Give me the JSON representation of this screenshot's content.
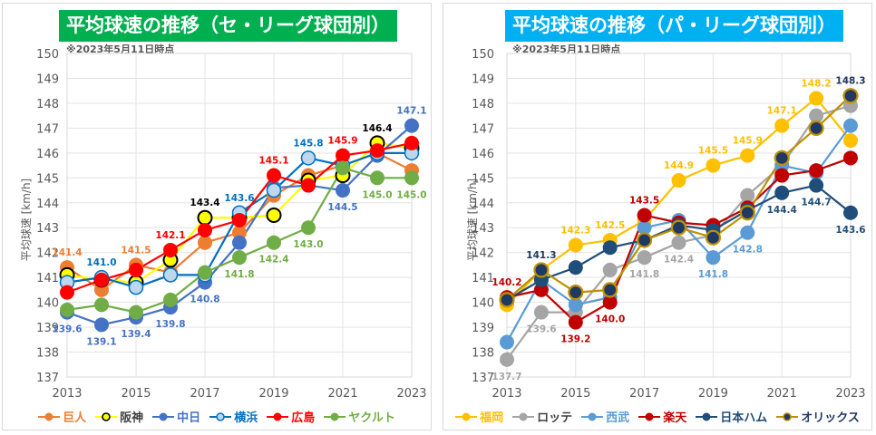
{
  "charts": [
    {
      "id": "left",
      "title": "平均球速の推移（セ・リーグ球団別）",
      "title_bg": "#00b050",
      "note": "※2023年5月11日時点",
      "ylabel": "平均球速 [km/h]"
    },
    {
      "id": "right",
      "title": "平均球速の推移（パ・リーグ球団別）",
      "title_bg": "#00b0f0",
      "note": "※2023年5月11日時点",
      "ylabel": "平均球速 [km/h]"
    }
  ],
  "chart_data": [
    {
      "type": "line",
      "title": "平均球速の推移（セ・リーグ球団別）",
      "subtitle": "※2023年5月11日時点",
      "xlabel": "",
      "ylabel": "平均球速 [km/h]",
      "x": [
        2013,
        2014,
        2015,
        2016,
        2017,
        2018,
        2019,
        2020,
        2021,
        2022,
        2023
      ],
      "xticks": [
        "2013",
        "2015",
        "2017",
        "2019",
        "2021",
        "2023"
      ],
      "yticks": [
        "137",
        "138",
        "139",
        "140",
        "141",
        "142",
        "143",
        "144",
        "145",
        "146",
        "147",
        "148",
        "149",
        "150"
      ],
      "ylim": [
        137,
        150
      ],
      "grid": true,
      "legend": "bottom",
      "series": [
        {
          "name": "巨人",
          "color": "#ed7d31",
          "marker": "filled",
          "values": [
            141.4,
            140.5,
            141.5,
            141.2,
            142.4,
            142.8,
            144.3,
            145.1,
            145.5,
            146.0,
            145.3
          ],
          "labels": [
            {
              "i": 0,
              "text": "141.4",
              "pos": "above"
            },
            {
              "i": 2,
              "text": "141.5",
              "pos": "above"
            }
          ]
        },
        {
          "name": "阪神",
          "color": "#ffff00",
          "marker": "ring-black",
          "values": [
            141.1,
            140.9,
            140.8,
            141.7,
            143.4,
            143.4,
            143.5,
            144.9,
            145.1,
            146.4,
            146.2
          ],
          "labels": [
            {
              "i": 4,
              "text": "143.4",
              "pos": "above"
            },
            {
              "i": 9,
              "text": "146.4",
              "pos": "above"
            }
          ]
        },
        {
          "name": "中日",
          "color": "#4472c4",
          "marker": "filled",
          "values": [
            139.6,
            139.1,
            139.4,
            139.8,
            140.8,
            142.4,
            144.6,
            144.7,
            144.5,
            145.9,
            147.1
          ],
          "labels": [
            {
              "i": 0,
              "text": "139.6",
              "pos": "below"
            },
            {
              "i": 1,
              "text": "139.1",
              "pos": "below"
            },
            {
              "i": 2,
              "text": "139.4",
              "pos": "below"
            },
            {
              "i": 3,
              "text": "139.8",
              "pos": "below"
            },
            {
              "i": 4,
              "text": "140.8",
              "pos": "below"
            },
            {
              "i": 8,
              "text": "144.5",
              "pos": "below"
            },
            {
              "i": 10,
              "text": "147.1",
              "pos": "above"
            }
          ]
        },
        {
          "name": "横浜",
          "color": "#0070c0",
          "marker": "hollow",
          "values": [
            140.8,
            141.0,
            140.6,
            141.1,
            141.1,
            143.6,
            144.5,
            145.8,
            145.5,
            146.0,
            146.0
          ],
          "labels": [
            {
              "i": 1,
              "text": "141.0",
              "pos": "above"
            },
            {
              "i": 5,
              "text": "143.6",
              "pos": "above"
            },
            {
              "i": 7,
              "text": "145.8",
              "pos": "above"
            }
          ]
        },
        {
          "name": "広島",
          "color": "#ff0000",
          "marker": "filled",
          "values": [
            140.4,
            140.9,
            141.3,
            142.1,
            142.9,
            143.3,
            145.1,
            144.7,
            145.9,
            146.1,
            146.4
          ],
          "labels": [
            {
              "i": 3,
              "text": "142.1",
              "pos": "above"
            },
            {
              "i": 6,
              "text": "145.1",
              "pos": "above"
            },
            {
              "i": 8,
              "text": "145.9",
              "pos": "above"
            }
          ]
        },
        {
          "name": "ヤクルト",
          "color": "#70ad47",
          "marker": "filled",
          "values": [
            139.7,
            139.9,
            139.6,
            140.1,
            141.2,
            141.8,
            142.4,
            143.0,
            145.4,
            145.0,
            145.0
          ],
          "labels": [
            {
              "i": 5,
              "text": "141.8",
              "pos": "below"
            },
            {
              "i": 6,
              "text": "142.4",
              "pos": "below"
            },
            {
              "i": 7,
              "text": "143.0",
              "pos": "below"
            },
            {
              "i": 9,
              "text": "145.0",
              "pos": "below"
            },
            {
              "i": 10,
              "text": "145.0",
              "pos": "below"
            }
          ]
        }
      ]
    },
    {
      "type": "line",
      "title": "平均球速の推移（パ・リーグ球団別）",
      "subtitle": "※2023年5月11日時点",
      "xlabel": "",
      "ylabel": "平均球速 [km/h]",
      "x": [
        2013,
        2014,
        2015,
        2016,
        2017,
        2018,
        2019,
        2020,
        2021,
        2022,
        2023
      ],
      "xticks": [
        "2013",
        "2015",
        "2017",
        "2019",
        "2021",
        "2023"
      ],
      "yticks": [
        "137",
        "138",
        "139",
        "140",
        "141",
        "142",
        "143",
        "144",
        "145",
        "146",
        "147",
        "148",
        "149",
        "150"
      ],
      "ylim": [
        137,
        150
      ],
      "grid": true,
      "legend": "bottom",
      "series": [
        {
          "name": "福岡",
          "color": "#ffc000",
          "marker": "filled",
          "values": [
            139.9,
            141.3,
            142.3,
            142.5,
            143.3,
            144.9,
            145.5,
            145.9,
            147.1,
            148.2,
            146.5
          ],
          "labels": [
            {
              "i": 2,
              "text": "142.3",
              "pos": "above"
            },
            {
              "i": 3,
              "text": "142.5",
              "pos": "above"
            },
            {
              "i": 5,
              "text": "144.9",
              "pos": "above"
            },
            {
              "i": 6,
              "text": "145.5",
              "pos": "above"
            },
            {
              "i": 7,
              "text": "145.9",
              "pos": "above"
            },
            {
              "i": 8,
              "text": "147.1",
              "pos": "above"
            },
            {
              "i": 9,
              "text": "148.2",
              "pos": "above"
            }
          ]
        },
        {
          "name": "ロッテ",
          "color": "#a5a5a5",
          "marker": "filled",
          "values": [
            137.7,
            139.6,
            139.6,
            141.3,
            141.8,
            142.4,
            142.7,
            144.3,
            145.5,
            147.5,
            147.9
          ],
          "labels": [
            {
              "i": 0,
              "text": "137.7",
              "pos": "below"
            },
            {
              "i": 1,
              "text": "139.6",
              "pos": "below"
            },
            {
              "i": 4,
              "text": "141.8",
              "pos": "below"
            },
            {
              "i": 5,
              "text": "142.4",
              "pos": "below"
            }
          ]
        },
        {
          "name": "西武",
          "color": "#5b9bd5",
          "marker": "filled",
          "values": [
            138.4,
            140.9,
            139.9,
            140.2,
            143.0,
            143.3,
            141.8,
            142.8,
            145.5,
            145.2,
            147.1
          ],
          "labels": [
            {
              "i": 6,
              "text": "141.8",
              "pos": "below"
            },
            {
              "i": 7,
              "text": "142.8",
              "pos": "below"
            }
          ]
        },
        {
          "name": "楽天",
          "color": "#c00000",
          "marker": "filled",
          "values": [
            140.2,
            140.5,
            139.2,
            140.0,
            143.5,
            143.2,
            143.1,
            143.8,
            145.1,
            145.3,
            145.8
          ],
          "labels": [
            {
              "i": 0,
              "text": "140.2",
              "pos": "above"
            },
            {
              "i": 2,
              "text": "139.2",
              "pos": "below"
            },
            {
              "i": 3,
              "text": "140.0",
              "pos": "below"
            },
            {
              "i": 4,
              "text": "143.5",
              "pos": "above"
            }
          ]
        },
        {
          "name": "日本ハム",
          "color": "#1f4e79",
          "marker": "filled",
          "values": [
            140.1,
            140.9,
            141.4,
            142.2,
            142.5,
            143.1,
            142.9,
            143.7,
            144.4,
            144.7,
            143.6
          ],
          "labels": [
            {
              "i": 8,
              "text": "144.4",
              "pos": "below"
            },
            {
              "i": 9,
              "text": "144.7",
              "pos": "below"
            },
            {
              "i": 10,
              "text": "143.6",
              "pos": "below"
            }
          ]
        },
        {
          "name": "オリックス",
          "color": "#bf9000",
          "marker": "ring-navy",
          "values": [
            140.1,
            141.3,
            140.4,
            140.5,
            142.5,
            143.0,
            142.6,
            143.6,
            145.8,
            147.0,
            148.3
          ],
          "labels": [
            {
              "i": 1,
              "text": "141.3",
              "pos": "above"
            },
            {
              "i": 10,
              "text": "148.3",
              "pos": "above"
            }
          ]
        }
      ]
    }
  ]
}
